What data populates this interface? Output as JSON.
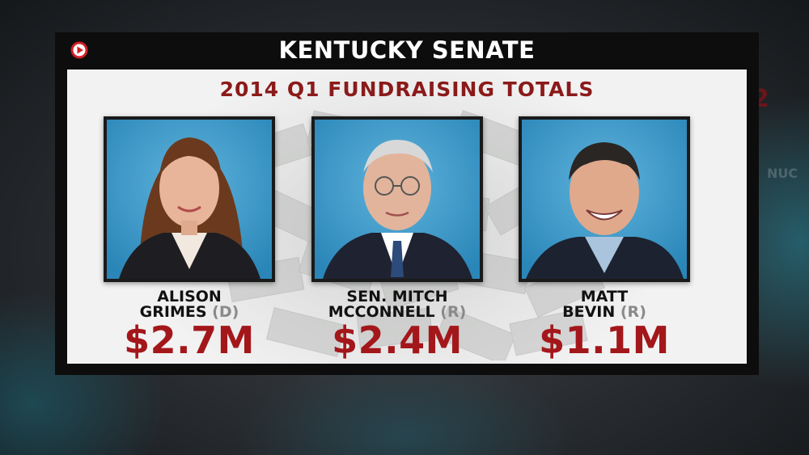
{
  "header": {
    "title": "KENTUCKY SENATE"
  },
  "panel": {
    "subtitle": "2014 Q1 FUNDRAISING TOTALS"
  },
  "background": {
    "partial_number": "2"
  },
  "candidates": [
    {
      "name_line1": "ALISON",
      "name_line2": "GRIMES",
      "party": "(D)",
      "amount": "$2.7M"
    },
    {
      "name_line1": "SEN. MITCH",
      "name_line2": "MCCONNELL",
      "party": "(R)",
      "amount": "$2.4M"
    },
    {
      "name_line1": "MATT",
      "name_line2": "BEVIN",
      "party": "(R)",
      "amount": "$1.1M"
    }
  ],
  "colors": {
    "accent_red": "#a3171b",
    "title_red": "#8b1a1a",
    "photo_bg_blue": "#2f8fc0",
    "frame_black": "#0d0d0d"
  },
  "icons": {
    "corner_logo": "play-button-icon"
  }
}
